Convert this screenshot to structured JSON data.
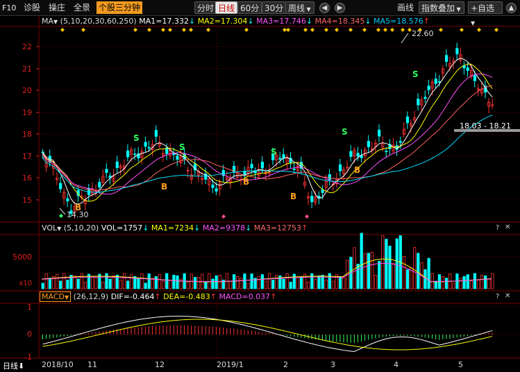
{
  "toolbar": {
    "f10": "F10",
    "items": [
      "诊股",
      "操庄",
      "全景"
    ],
    "active_view": "个股三分钟",
    "periods": [
      "分时",
      "日线",
      "60分",
      "30分",
      "周线"
    ],
    "active_period": "日线",
    "draw": "画线",
    "overlay": "指数叠加",
    "watchlist": "+自选"
  },
  "ma_legend": {
    "name": "MA",
    "params": "(5,10,20,30,60,250)",
    "ma1": "MA1=17.332",
    "ma2": "MA2=17.304",
    "ma3": "MA3=17.746",
    "ma4": "MA4=18.345",
    "ma5": "MA5=18.576"
  },
  "price_axis": [
    "22",
    "21",
    "20",
    "19",
    "18",
    "17",
    "16",
    "15"
  ],
  "annotations": {
    "high": "22.60",
    "low": "14.30",
    "range": "18.03 - 18.21",
    "buy": "B",
    "sell": "S"
  },
  "vol_legend": {
    "name": "VOL",
    "params": "(5,10,20)",
    "vol": "VOL=1757",
    "ma1": "MA1=7234",
    "ma2": "MA2=9378",
    "ma3": "MA3=12753"
  },
  "vol_axis": [
    "5000",
    "x10"
  ],
  "macd_legend": {
    "name": "MACD",
    "params": "(26,12,9)",
    "dif": "DIF=-0.464",
    "dea": "DEA=-0.483",
    "macd": "MACD=0.037"
  },
  "macd_axis": [
    "1",
    "0",
    "-1"
  ],
  "dates": [
    "2018/10",
    "11",
    "12",
    "2019/1",
    "2",
    "3",
    "4",
    "5"
  ],
  "bottom_label": "日线",
  "colors": {
    "up": "#ff3232",
    "down": "#00ffff",
    "ma1": "#ffffff",
    "ma2": "#ffff00",
    "ma3": "#ff50ff",
    "ma4": "#ff6060",
    "ma5": "#00e0ff",
    "grid": "#7a0000"
  }
}
